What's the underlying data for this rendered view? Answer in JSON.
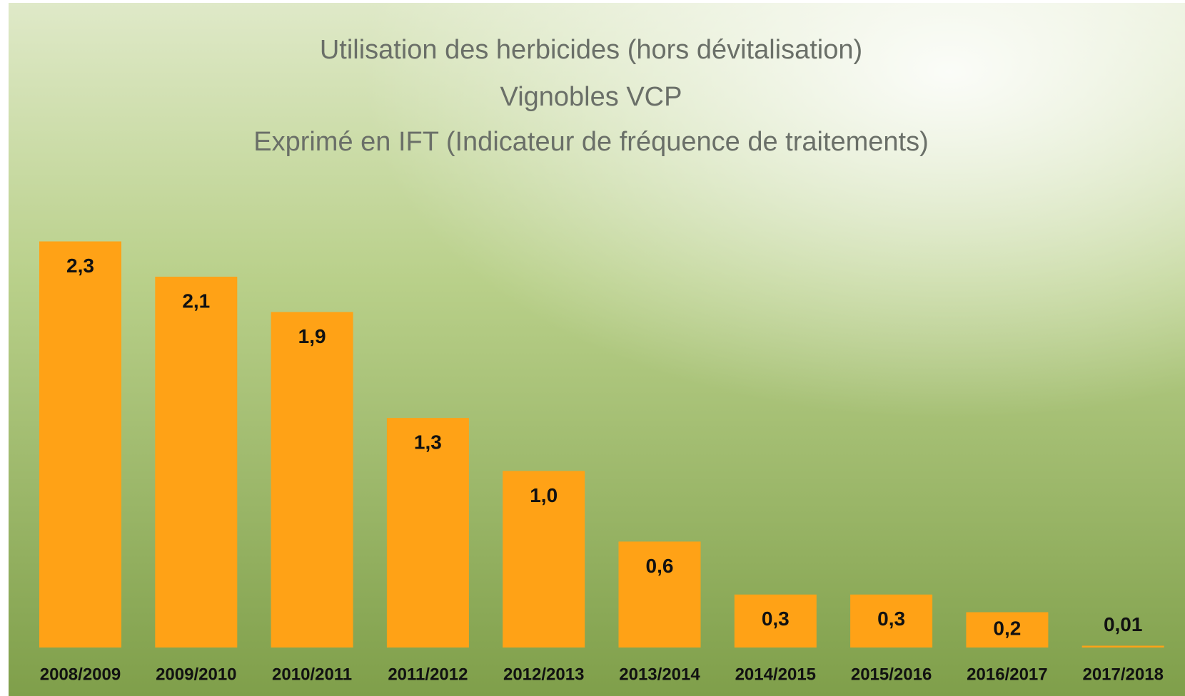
{
  "chart_data": {
    "type": "bar",
    "title": [
      "Utilisation des herbicides (hors dévitalisation)",
      "Vignobles VCP",
      "Exprimé en IFT (Indicateur de fréquence de traitements)"
    ],
    "categories": [
      "2008/2009",
      "2009/2010",
      "2010/2011",
      "2011/2012",
      "2012/2013",
      "2013/2014",
      "2014/2015",
      "2015/2016",
      "2016/2017",
      "2017/2018"
    ],
    "values": [
      2.3,
      2.1,
      1.9,
      1.3,
      1.0,
      0.6,
      0.3,
      0.3,
      0.2,
      0.01
    ],
    "value_labels": [
      "2,3",
      "2,1",
      "1,9",
      "1,3",
      "1,0",
      "0,6",
      "0,3",
      "0,3",
      "0,2",
      "0,01"
    ],
    "color": "#ffa216"
  }
}
